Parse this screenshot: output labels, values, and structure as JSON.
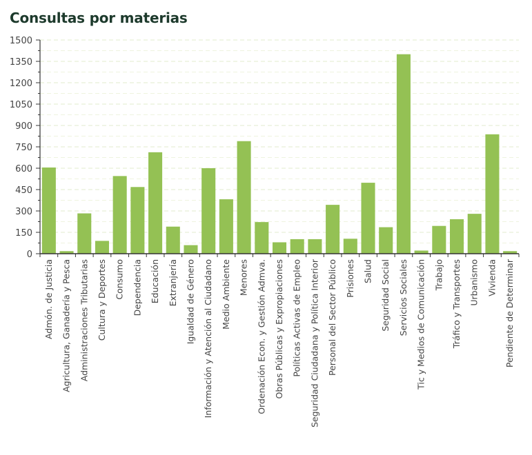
{
  "chart_data": {
    "type": "bar",
    "title": "Consultas por materias",
    "xlabel": "",
    "ylabel": "",
    "ylim": [
      0,
      1500
    ],
    "yticks": [
      0,
      150,
      300,
      450,
      600,
      750,
      900,
      1050,
      1200,
      1350,
      1500
    ],
    "grid": true,
    "bar_color": "#94c154",
    "categories": [
      "Admón. de Justicia",
      "Agricultura, Ganadería y Pesca",
      "Administraciones Tributarias",
      "Cultura y Deportes",
      "Consumo",
      "Dependencia",
      "Educación",
      "Extranjería",
      "Igualdad de Género",
      "Información y Atención al Ciudadano",
      "Medio Ambiente",
      "Menores",
      "Ordenación Econ. y Gestión Admva.",
      "Obras Públicas y Expropiaciones",
      "Políticas Activas de Empleo",
      "Seguridad Ciudadana y Política Interior",
      "Personal del Sector Público",
      "Prisiones",
      "Salud",
      "Seguridad Social",
      "Servicios Sociales",
      "Tic y Medios de Comunicación",
      "Trabajo",
      "Tráfico y Transportes",
      "Urbanismo",
      "Vivienda",
      "Pendiente de Determinar"
    ],
    "values": [
      605,
      18,
      283,
      90,
      545,
      468,
      712,
      190,
      60,
      600,
      382,
      790,
      222,
      80,
      102,
      102,
      343,
      105,
      498,
      186,
      1400,
      22,
      195,
      242,
      280,
      838,
      18
    ]
  }
}
